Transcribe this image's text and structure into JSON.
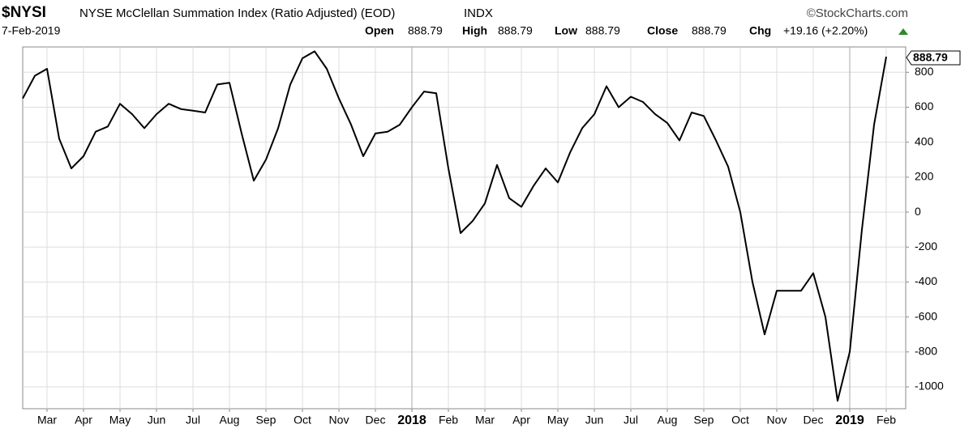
{
  "header": {
    "symbol": "$NYSI",
    "name": "NYSE McClellan Summation Index (Ratio Adjusted) (EOD)",
    "exchange": "INDX",
    "source": "©StockCharts.com",
    "date": "7-Feb-2019",
    "open_label": "Open",
    "open": "888.79",
    "high_label": "High",
    "high": "888.79",
    "low_label": "Low",
    "low": "888.79",
    "close_label": "Close",
    "close": "888.79",
    "chg_label": "Chg",
    "chg": "+19.16 (+2.20%)"
  },
  "chart_data": {
    "type": "line",
    "color": "#000000",
    "grid": true,
    "categories": [
      null,
      null,
      "Mar",
      null,
      null,
      "Apr",
      null,
      null,
      "May",
      null,
      null,
      "Jun",
      null,
      null,
      "Jul",
      null,
      null,
      "Aug",
      null,
      null,
      "Sep",
      null,
      null,
      "Oct",
      null,
      null,
      "Nov",
      null,
      null,
      "Dec",
      null,
      null,
      "2018",
      null,
      null,
      "Feb",
      null,
      null,
      "Mar",
      null,
      null,
      "Apr",
      null,
      null,
      "May",
      null,
      null,
      "Jun",
      null,
      null,
      "Jul",
      null,
      null,
      "Aug",
      null,
      null,
      "Sep",
      null,
      null,
      "Oct",
      null,
      null,
      "Nov",
      null,
      null,
      "Dec",
      null,
      null,
      "2019",
      null,
      null,
      "Feb"
    ],
    "values": [
      650,
      780,
      820,
      420,
      250,
      320,
      460,
      490,
      620,
      560,
      480,
      560,
      620,
      590,
      580,
      570,
      730,
      740,
      450,
      180,
      300,
      480,
      730,
      880,
      920,
      820,
      650,
      500,
      320,
      450,
      460,
      500,
      600,
      690,
      680,
      250,
      -120,
      -50,
      50,
      270,
      80,
      30,
      150,
      250,
      170,
      340,
      480,
      560,
      720,
      600,
      660,
      630,
      560,
      510,
      410,
      570,
      550,
      410,
      260,
      0,
      -400,
      -700,
      -450,
      -450,
      -450,
      -350,
      -600,
      -1080,
      -800,
      -100,
      500,
      888.79
    ],
    "ylim": [
      -1125,
      945
    ],
    "yticks": [
      -1000,
      -800,
      -600,
      -400,
      -200,
      0,
      200,
      400,
      600,
      800
    ]
  }
}
